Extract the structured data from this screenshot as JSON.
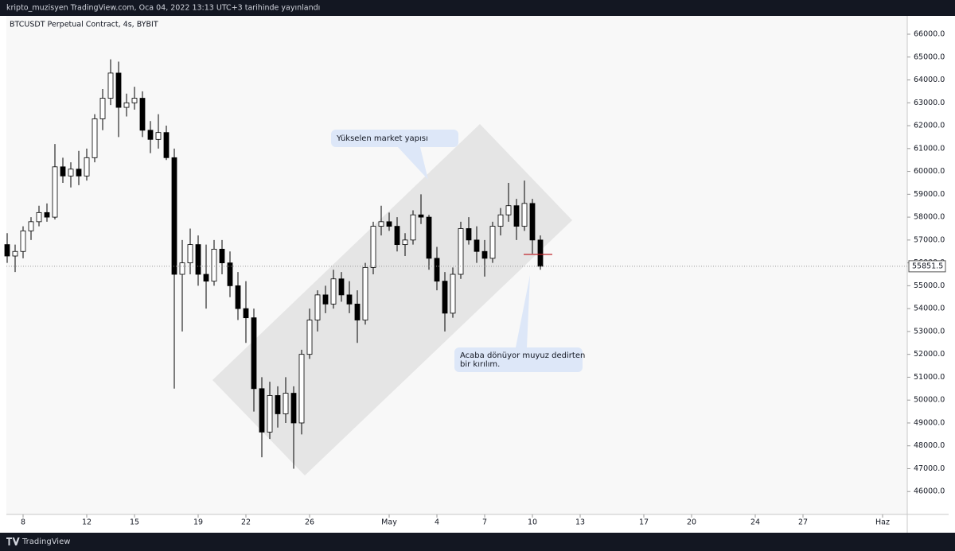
{
  "header": "kripto_muzisyen TradingView.com, Oca 04, 2022 13:13 UTC+3 tarihinde yayınlandı",
  "brand": "TradingView",
  "chart_data": {
    "type": "candlestick",
    "title": "BTCUSDT Perpetual Contract, 4s, BYBIT",
    "open": [
      56800,
      56300,
      56500,
      57400,
      57800,
      58200,
      58000,
      60200,
      59800,
      60100,
      59800,
      60600,
      62300,
      63200,
      64300,
      62800,
      63000,
      63200,
      61800,
      61400,
      61700,
      60600,
      55500,
      56000,
      56800,
      55500,
      55200,
      56600,
      56000,
      55000,
      54000,
      53600,
      50500,
      48600,
      50200,
      49400,
      50300,
      49000,
      52000,
      53500,
      54600,
      54200,
      55300,
      54600,
      54200,
      53500,
      55800,
      57600,
      57800,
      57600,
      56800,
      57000,
      58100,
      58000,
      56200,
      55200,
      53800,
      55500,
      57500,
      57000,
      56500,
      56200,
      57600,
      58100,
      58500,
      57600,
      58600,
      57000
    ],
    "high": [
      57300,
      56800,
      57600,
      58000,
      58500,
      58600,
      61200,
      60600,
      60400,
      60900,
      61000,
      62500,
      63600,
      64900,
      64800,
      63400,
      63700,
      63500,
      62200,
      62500,
      62000,
      61000,
      57000,
      57500,
      57200,
      56800,
      57000,
      57000,
      56500,
      55600,
      55200,
      54000,
      51000,
      50800,
      50600,
      51000,
      50600,
      52200,
      54000,
      54800,
      55000,
      55700,
      55600,
      55200,
      54800,
      56000,
      57800,
      58500,
      58200,
      58000,
      57300,
      58300,
      59000,
      58100,
      56700,
      55600,
      55800,
      57800,
      58000,
      57600,
      57000,
      57800,
      58400,
      59500,
      58800,
      59600,
      58800,
      57200
    ],
    "low": [
      56000,
      55600,
      56200,
      57000,
      57600,
      57800,
      57900,
      59500,
      59300,
      59400,
      59600,
      60400,
      61800,
      62900,
      61500,
      62400,
      62700,
      61500,
      60800,
      61000,
      60500,
      50500,
      53000,
      55500,
      55000,
      54000,
      55000,
      55500,
      54500,
      53500,
      52500,
      49500,
      47500,
      48300,
      48800,
      49000,
      47000,
      48500,
      51800,
      53000,
      53800,
      54000,
      54300,
      53800,
      52500,
      53300,
      55500,
      57200,
      57400,
      56500,
      56300,
      56800,
      57700,
      55700,
      54800,
      53000,
      53600,
      55300,
      56800,
      56000,
      55400,
      56000,
      57200,
      57800,
      57000,
      57400,
      56400,
      55700
    ],
    "close": [
      56300,
      56500,
      57400,
      57800,
      58200,
      58000,
      60200,
      59800,
      60100,
      59800,
      60600,
      62300,
      63200,
      64300,
      62800,
      63000,
      63200,
      61800,
      61400,
      61700,
      60600,
      55500,
      56000,
      56800,
      55500,
      55200,
      56600,
      56000,
      55000,
      54000,
      53600,
      50500,
      48600,
      50200,
      49400,
      50300,
      49000,
      52000,
      53500,
      54600,
      54200,
      55300,
      54600,
      54200,
      53500,
      55800,
      57600,
      57800,
      57600,
      56800,
      57000,
      58100,
      58000,
      56200,
      55200,
      53800,
      55500,
      57500,
      57000,
      56500,
      56200,
      57600,
      58100,
      58500,
      57600,
      58600,
      57000,
      55851.5
    ],
    "up_color": "#ffffff",
    "down_color": "#000000",
    "wick_color": "#000000",
    "xlim": [
      -0.1,
      113.1
    ],
    "xticks": [
      {
        "value": 2,
        "label": "8"
      },
      {
        "value": 10,
        "label": "12"
      },
      {
        "value": 16,
        "label": "15"
      },
      {
        "value": 24,
        "label": "19"
      },
      {
        "value": 30,
        "label": "22"
      },
      {
        "value": 38,
        "label": "26"
      },
      {
        "value": 48,
        "label": "May"
      },
      {
        "value": 54,
        "label": "4"
      },
      {
        "value": 60,
        "label": "7"
      },
      {
        "value": 66,
        "label": "10"
      },
      {
        "value": 72,
        "label": "13"
      },
      {
        "value": 80,
        "label": "17"
      },
      {
        "value": 86,
        "label": "20"
      },
      {
        "value": 94,
        "label": "24"
      },
      {
        "value": 100,
        "label": "27"
      },
      {
        "value": 110,
        "label": "Haz"
      }
    ],
    "ylim": [
      45000,
      66800
    ],
    "yticks": [
      {
        "value": 46000,
        "label": "46000.0"
      },
      {
        "value": 47000,
        "label": "47000.0"
      },
      {
        "value": 48000,
        "label": "48000.0"
      },
      {
        "value": 49000,
        "label": "49000.0"
      },
      {
        "value": 50000,
        "label": "50000.0"
      },
      {
        "value": 51000,
        "label": "51000.0"
      },
      {
        "value": 52000,
        "label": "52000.0"
      },
      {
        "value": 53000,
        "label": "53000.0"
      },
      {
        "value": 54000,
        "label": "54000.0"
      },
      {
        "value": 55000,
        "label": "55000.0"
      },
      {
        "value": 56000,
        "label": "56000.0"
      },
      {
        "value": 57000,
        "label": "57000.0"
      },
      {
        "value": 58000,
        "label": "58000.0"
      },
      {
        "value": 59000,
        "label": "59000.0"
      },
      {
        "value": 60000,
        "label": "60000.0"
      },
      {
        "value": 61000,
        "label": "61000.0"
      },
      {
        "value": 62000,
        "label": "62000.0"
      },
      {
        "value": 63000,
        "label": "63000.0"
      },
      {
        "value": 64000,
        "label": "64000.0"
      },
      {
        "value": 65000,
        "label": "65000.0"
      },
      {
        "value": 66000,
        "label": "66000.0"
      }
    ],
    "grid": false,
    "annotations": [
      "Yükselen market yapısı",
      "Acaba dönüyor muyuz dedirten",
      "bir kırılım."
    ]
  }
}
